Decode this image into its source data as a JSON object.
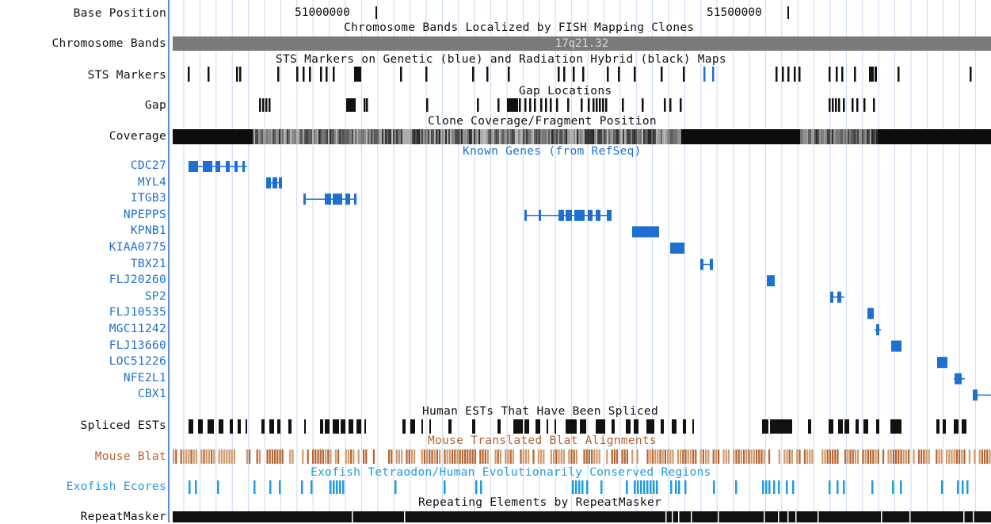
{
  "base_position": {
    "label": "Base Position",
    "ticks": [
      {
        "text": "51000000"
      },
      {
        "text": "51500000"
      }
    ]
  },
  "chromosome_bands": {
    "label": "Chromosome Bands",
    "title": "Chromosome Bands Localized by FISH Mapping Clones",
    "band_name": "17q21.32",
    "color": "#7a7a7a"
  },
  "sts_markers": {
    "label": "STS Markers",
    "title": "STS Markers on Genetic (blue) and Radiation Hybrid (black) Maps"
  },
  "gap": {
    "label": "Gap",
    "title": "Gap Locations"
  },
  "coverage": {
    "label": "Coverage",
    "title": "Clone Coverage/Fragment Position"
  },
  "known_genes": {
    "title": "Known Genes (from RefSeq)",
    "color": "#1f6fd1",
    "genes": [
      "CDC27",
      "MYL4",
      "ITGB3",
      "NPEPPS",
      "KPNB1",
      "KIAA0775",
      "TBX21",
      "FLJ20260",
      "SP2",
      "FLJ10535",
      "MGC11242",
      "FLJ13660",
      "LOC51226",
      "NFE2L1",
      "CBX1"
    ]
  },
  "spliced_ests": {
    "label": "Spliced ESTs",
    "title": "Human ESTs That Have Been Spliced"
  },
  "mouse_blat": {
    "label": "Mouse Blat",
    "title": "Mouse Translated Blat Alignments",
    "color": "#b5642f"
  },
  "exofish": {
    "label": "Exofish Ecores",
    "title": "Exofish Tetraodon/Human Evolutionarily Conserved Regions",
    "color": "#1f9be0"
  },
  "repeatmasker": {
    "label": "RepeatMasker",
    "title": "Repeating Elements by RepeatMasker"
  }
}
